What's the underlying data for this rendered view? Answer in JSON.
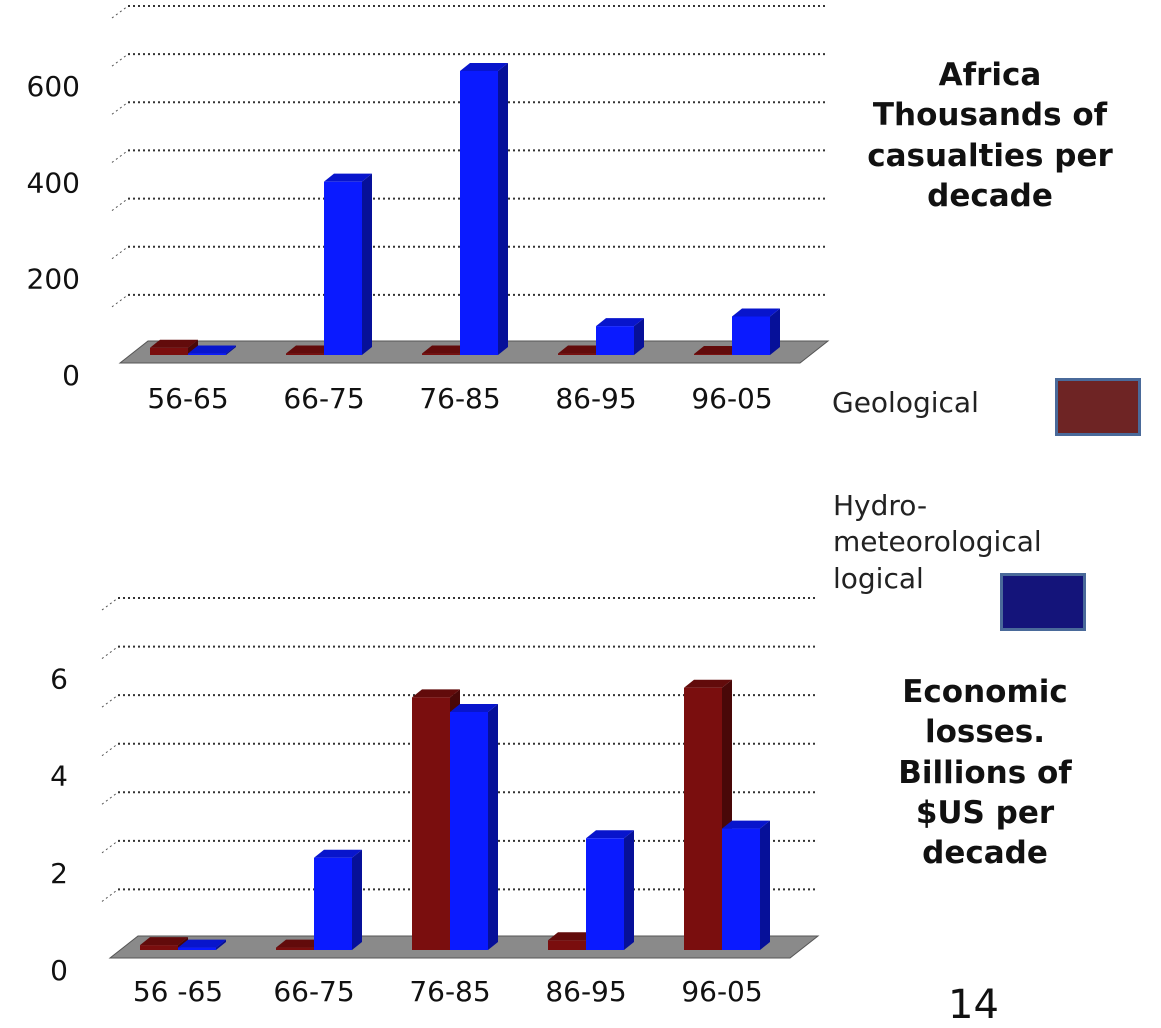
{
  "page_number": "14",
  "chart_data": [
    {
      "type": "bar",
      "title": "Africa Thousands of casualties per decade",
      "categories": [
        "56-65",
        "66-75",
        "76-85",
        "86-95",
        "96-05"
      ],
      "series": [
        {
          "name": "Geological",
          "color": "#7a0e0e",
          "legend_color": "#6e2424",
          "values": [
            15,
            3,
            3,
            3,
            2
          ]
        },
        {
          "name": "Hydro- meteorological logical",
          "color": "#0a1aff",
          "legend_color": "#14147a",
          "values": [
            3,
            360,
            590,
            60,
            80
          ]
        }
      ],
      "ylim": [
        0,
        700
      ],
      "yticks": [
        0,
        200,
        400,
        600
      ],
      "minor_yticks": [
        100,
        300,
        500,
        700
      ],
      "grid": true
    },
    {
      "type": "bar",
      "title": "Economic losses. Billions of $US per decade",
      "categories": [
        "56 -65",
        "66-75",
        "76-85",
        "86-95",
        "96-05"
      ],
      "series": [
        {
          "color": "#7a0e0e",
          "values": [
            0.1,
            0.05,
            5.2,
            0.2,
            5.4
          ]
        },
        {
          "color": "#0a1aff",
          "values": [
            0.05,
            1.9,
            4.9,
            2.3,
            2.5
          ]
        }
      ],
      "ylim": [
        0,
        7
      ],
      "yticks": [
        0,
        2,
        4,
        6
      ],
      "minor_yticks": [
        1,
        3,
        5,
        7
      ],
      "grid": true
    }
  ]
}
